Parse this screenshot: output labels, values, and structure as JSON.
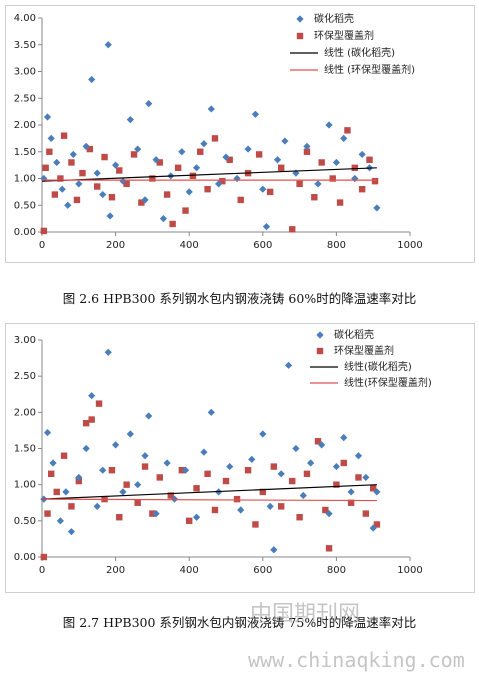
{
  "chart_data": [
    {
      "type": "scatter",
      "caption": "图 2.6  HPB300 系列钢水包内钢液浇铸 60%时的降温速率对比",
      "xlim": [
        0,
        1000
      ],
      "xticks": [
        0,
        200,
        400,
        600,
        800,
        1000
      ],
      "ylim": [
        0,
        4
      ],
      "yticks": [
        {
          "value": 0,
          "label": "0.00"
        },
        {
          "value": 0.5,
          "label": "0.50"
        },
        {
          "value": 1,
          "label": "1.00"
        },
        {
          "value": 1.5,
          "label": "1.50"
        },
        {
          "value": 2,
          "label": "2.00"
        },
        {
          "value": 2.5,
          "label": "2.50"
        },
        {
          "value": 3,
          "label": "3.00"
        },
        {
          "value": 3.5,
          "label": "3.50"
        },
        {
          "value": 4,
          "label": "4.00"
        }
      ],
      "legend": "upper-right",
      "series": [
        {
          "name": "碳化稻壳",
          "color": "#4a7ebb",
          "marker": "diamond",
          "x": [
            5,
            15,
            25,
            40,
            55,
            70,
            85,
            100,
            120,
            135,
            150,
            165,
            180,
            185,
            200,
            220,
            240,
            260,
            280,
            290,
            310,
            330,
            350,
            380,
            400,
            420,
            440,
            460,
            480,
            500,
            530,
            560,
            580,
            600,
            610,
            640,
            660,
            690,
            720,
            750,
            780,
            800,
            820,
            850,
            870,
            890,
            910
          ],
          "values": [
            1.0,
            2.15,
            1.75,
            1.3,
            0.8,
            0.5,
            1.45,
            0.9,
            1.6,
            2.85,
            1.1,
            0.7,
            3.5,
            0.3,
            1.25,
            0.95,
            2.1,
            1.55,
            0.6,
            2.4,
            1.35,
            0.25,
            1.05,
            1.5,
            0.75,
            1.2,
            1.65,
            2.3,
            0.9,
            1.4,
            1.0,
            1.55,
            2.2,
            0.8,
            0.1,
            1.35,
            1.7,
            1.1,
            1.6,
            0.9,
            2.0,
            1.3,
            1.75,
            1.0,
            1.45,
            1.2,
            0.45
          ]
        },
        {
          "name": "环保型覆盖剂",
          "color": "#be4b48",
          "marker": "square",
          "x": [
            5,
            10,
            20,
            35,
            50,
            60,
            80,
            95,
            110,
            130,
            150,
            170,
            190,
            210,
            230,
            250,
            270,
            300,
            320,
            340,
            355,
            370,
            390,
            410,
            430,
            450,
            470,
            490,
            510,
            540,
            560,
            590,
            620,
            650,
            680,
            700,
            720,
            740,
            760,
            790,
            810,
            830,
            850,
            870,
            890,
            905
          ],
          "values": [
            0.02,
            1.2,
            1.5,
            0.7,
            1.0,
            1.8,
            1.3,
            0.6,
            1.1,
            1.55,
            0.85,
            1.4,
            0.65,
            1.15,
            0.9,
            1.45,
            0.55,
            1.0,
            1.3,
            0.7,
            0.15,
            1.2,
            0.4,
            1.05,
            1.5,
            0.8,
            1.75,
            0.95,
            1.35,
            0.6,
            1.1,
            1.45,
            0.75,
            1.2,
            0.05,
            0.9,
            1.5,
            0.65,
            1.3,
            1.0,
            0.55,
            1.9,
            1.2,
            0.8,
            1.35,
            0.95
          ]
        }
      ],
      "lines": [
        {
          "name": "线性 (碳化稻壳)",
          "color": "#000000",
          "x": [
            0,
            910
          ],
          "values": [
            0.95,
            1.2
          ]
        },
        {
          "name": "线性 (环保型覆盖剂)",
          "color": "#e05050",
          "x": [
            0,
            910
          ],
          "values": [
            0.97,
            0.97
          ]
        }
      ]
    },
    {
      "type": "scatter",
      "caption": "图 2.7  HPB300 系列钢水包内钢液浇铸 75%时的降温速率对比",
      "xlim": [
        0,
        1000
      ],
      "xticks": [
        0,
        200,
        400,
        600,
        800,
        1000
      ],
      "ylim": [
        0,
        3
      ],
      "yticks": [
        {
          "value": 0,
          "label": "0.00"
        },
        {
          "value": 0.5,
          "label": "0.50"
        },
        {
          "value": 1,
          "label": "1.00"
        },
        {
          "value": 1.5,
          "label": "1.50"
        },
        {
          "value": 2,
          "label": "2.00"
        },
        {
          "value": 2.5,
          "label": "2.50"
        },
        {
          "value": 3,
          "label": "3.00"
        }
      ],
      "legend": "upper-right",
      "series": [
        {
          "name": "碳化稻壳",
          "color": "#4a7ebb",
          "marker": "diamond",
          "x": [
            5,
            15,
            30,
            50,
            65,
            80,
            100,
            120,
            135,
            150,
            165,
            180,
            200,
            220,
            240,
            260,
            280,
            290,
            310,
            340,
            360,
            390,
            420,
            440,
            460,
            480,
            510,
            540,
            570,
            600,
            620,
            630,
            650,
            670,
            690,
            710,
            730,
            760,
            780,
            800,
            820,
            840,
            860,
            880,
            900,
            910
          ],
          "values": [
            0.8,
            1.72,
            1.3,
            0.5,
            0.9,
            0.35,
            1.1,
            1.5,
            2.23,
            0.7,
            1.2,
            2.83,
            1.55,
            0.9,
            1.7,
            1.0,
            1.4,
            1.95,
            0.6,
            1.3,
            0.8,
            1.2,
            0.55,
            1.45,
            2.0,
            0.9,
            1.25,
            0.65,
            1.35,
            1.7,
            0.7,
            0.1,
            1.15,
            2.65,
            1.5,
            0.85,
            1.3,
            1.55,
            0.6,
            1.25,
            1.65,
            0.9,
            1.4,
            1.1,
            0.4,
            0.9
          ]
        },
        {
          "name": "环保型覆盖剂",
          "color": "#be4b48",
          "marker": "square",
          "x": [
            5,
            15,
            25,
            40,
            60,
            80,
            100,
            120,
            135,
            155,
            170,
            190,
            210,
            230,
            260,
            280,
            300,
            320,
            350,
            380,
            400,
            420,
            450,
            470,
            500,
            530,
            560,
            580,
            600,
            630,
            650,
            680,
            700,
            720,
            750,
            770,
            780,
            800,
            820,
            840,
            860,
            880,
            900,
            910
          ],
          "values": [
            0.0,
            0.6,
            1.15,
            0.9,
            1.4,
            0.7,
            1.05,
            1.85,
            1.9,
            2.12,
            0.8,
            1.2,
            0.55,
            1.0,
            0.75,
            1.25,
            0.6,
            1.1,
            0.85,
            1.2,
            0.5,
            0.95,
            1.15,
            0.65,
            1.05,
            0.8,
            1.2,
            0.45,
            0.9,
            1.25,
            0.7,
            1.05,
            0.55,
            1.15,
            1.6,
            0.65,
            0.12,
            1.0,
            1.3,
            0.75,
            1.1,
            0.6,
            0.95,
            0.45
          ]
        }
      ],
      "lines": [
        {
          "name": "线性(碳化稻壳)",
          "color": "#000000",
          "x": [
            0,
            910
          ],
          "values": [
            0.8,
            1.0
          ]
        },
        {
          "name": "线性(环保型覆盖剂)",
          "color": "#e05050",
          "x": [
            0,
            910
          ],
          "values": [
            0.8,
            0.78
          ]
        }
      ]
    }
  ],
  "watermark": {
    "title": "中国期刊网",
    "url": "www.chinaqking.com"
  }
}
